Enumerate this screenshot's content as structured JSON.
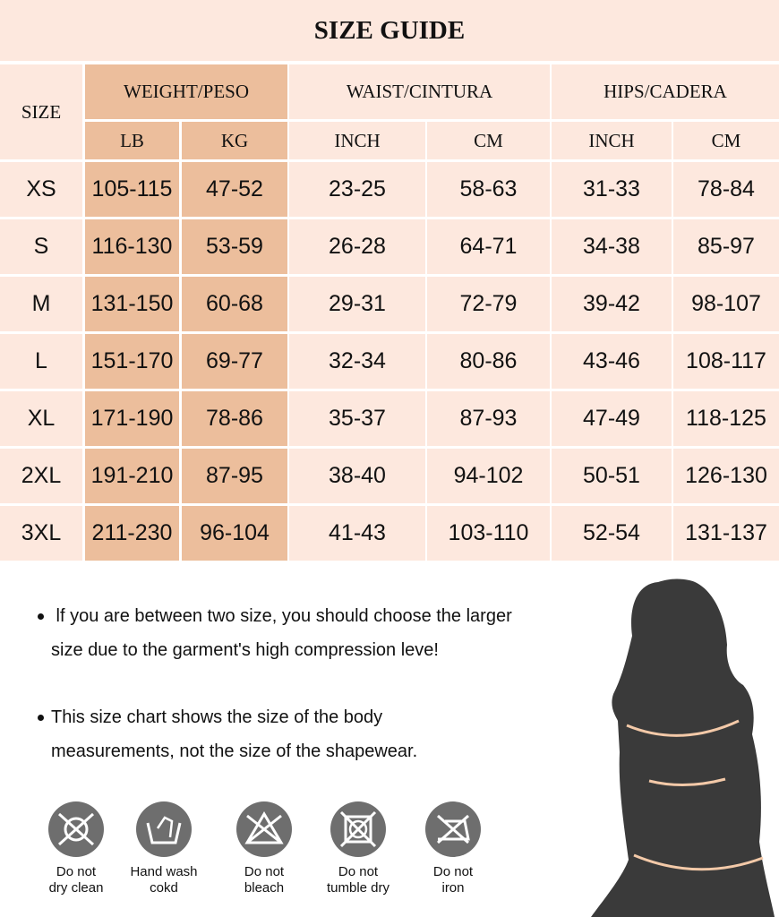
{
  "title": "SIZE GUIDE",
  "headers": {
    "size": "SIZE",
    "weight": "WEIGHT/PESO",
    "waist": "WAIST/CINTURA",
    "hips": "HIPS/CADERA",
    "lb": "LB",
    "kg": "KG",
    "waist_inch": "INCH",
    "waist_cm": "CM",
    "hips_inch": "INCH",
    "hips_cm": "CM"
  },
  "rows": [
    [
      "XS",
      "105-115",
      "47-52",
      "23-25",
      "58-63",
      "31-33",
      "78-84"
    ],
    [
      "S",
      "116-130",
      "53-59",
      "26-28",
      "64-71",
      "34-38",
      "85-97"
    ],
    [
      "M",
      "131-150",
      "60-68",
      "29-31",
      "72-79",
      "39-42",
      "98-107"
    ],
    [
      "L",
      "151-170",
      "69-77",
      "32-34",
      "80-86",
      "43-46",
      "108-117"
    ],
    [
      "XL",
      "171-190",
      "78-86",
      "35-37",
      "87-93",
      "47-49",
      "118-125"
    ],
    [
      "2XL",
      "191-210",
      "87-95",
      "38-40",
      "94-102",
      "50-51",
      "126-130"
    ],
    [
      "3XL",
      "211-230",
      "96-104",
      "41-43",
      "103-110",
      "52-54",
      "131-137"
    ]
  ],
  "notes": [
    {
      "line1": " lf you are between two size, you should choose the larger",
      "line2": "size due to the garment's high compression leve!"
    },
    {
      "line1": "This size chart shows the size of the body",
      "line2": "measurements, not the size of the shapewear."
    }
  ],
  "care": [
    {
      "icon": "no-dry-clean-icon",
      "line1": "Do not",
      "line2": "dry clean"
    },
    {
      "icon": "hand-wash-icon",
      "line1": "Hand wash",
      "line2": "cokd"
    },
    {
      "icon": "no-bleach-icon",
      "line1": "Do not",
      "line2": "bleach"
    },
    {
      "icon": "no-tumble-dry-icon",
      "line1": "Do not",
      "line2": "tumble dry"
    },
    {
      "icon": "no-iron-icon",
      "line1": "Do not",
      "line2": "iron"
    }
  ],
  "colors": {
    "table_bg": "#fde8de",
    "weight_bg": "#ecbe9c",
    "icon_bg": "#6e6e6e",
    "measure_line": "#f3c9a8"
  }
}
